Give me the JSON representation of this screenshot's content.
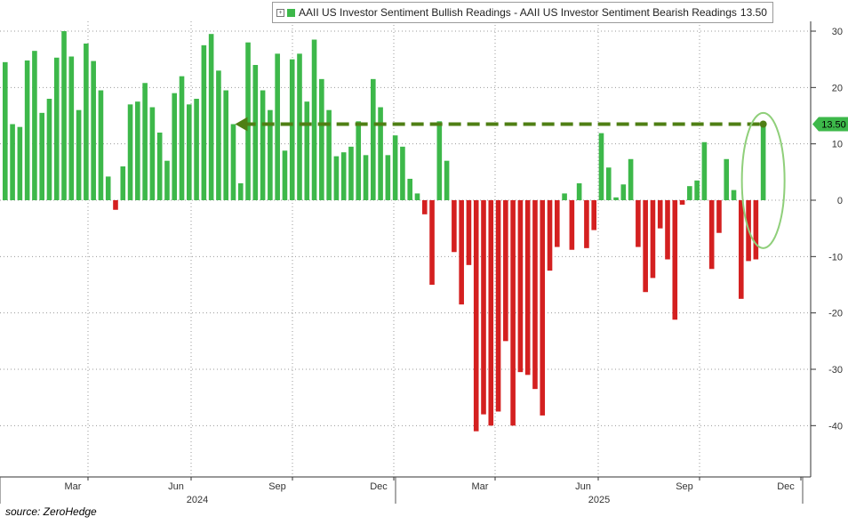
{
  "legend": {
    "label": "AAII US Investor Sentiment Bullish Readings - AAII US Investor Sentiment Bearish Readings",
    "value": "13.50",
    "swatch_color": "#3db84a"
  },
  "source": "source: ZeroHedge",
  "chart_data": {
    "type": "bar",
    "title": "",
    "xlabel": "",
    "ylabel": "",
    "ylim": [
      -50,
      32
    ],
    "y_ticks": [
      30,
      20,
      10,
      0,
      -10,
      -20,
      -30,
      -40
    ],
    "grid": true,
    "legend_position": "top-right",
    "current_value_label": "13.50",
    "colors": {
      "positive": "#3db84a",
      "negative": "#d42020",
      "arrow": "#4f7f14",
      "ellipse": "#8fcf7a"
    },
    "x_month_labels": [
      "Mar",
      "Jun",
      "Sep",
      "Dec",
      "Mar",
      "Jun",
      "Sep",
      "Dec"
    ],
    "x_year_labels": [
      "2024",
      "2025"
    ],
    "values": [
      24.5,
      13.5,
      13,
      24.8,
      26.5,
      15.5,
      18,
      25.3,
      30,
      25.5,
      16,
      27.8,
      24.7,
      19.5,
      4.2,
      -1.7,
      6,
      17,
      17.5,
      20.8,
      16.5,
      12,
      7,
      19,
      22,
      17,
      18,
      27.5,
      29.5,
      23,
      19.5,
      13.5,
      3,
      28,
      24,
      19.5,
      16,
      26,
      8.8,
      25,
      26,
      17.5,
      28.5,
      21.5,
      16,
      7.8,
      8.5,
      9.5,
      14,
      8,
      21.5,
      16.5,
      8,
      11.5,
      9.5,
      3.8,
      1.2,
      -2.5,
      -15,
      14,
      7,
      -9.2,
      -18.5,
      -11.5,
      -41,
      -38,
      -40,
      -37.5,
      -25,
      -40,
      -30.5,
      -31,
      -33.5,
      -38.2,
      -12.5,
      -8.3,
      1.2,
      -8.8,
      3,
      -8.5,
      -5.3,
      11.9,
      5.8,
      0.5,
      2.8,
      7.3,
      -8.3,
      -16.3,
      -13.8,
      -5,
      -10.5,
      -21.2,
      -0.8,
      2.5,
      3.5,
      10.3,
      -12.2,
      -5.8,
      7.3,
      1.8,
      -17.5,
      -10.8,
      -10.5,
      13.5
    ]
  }
}
